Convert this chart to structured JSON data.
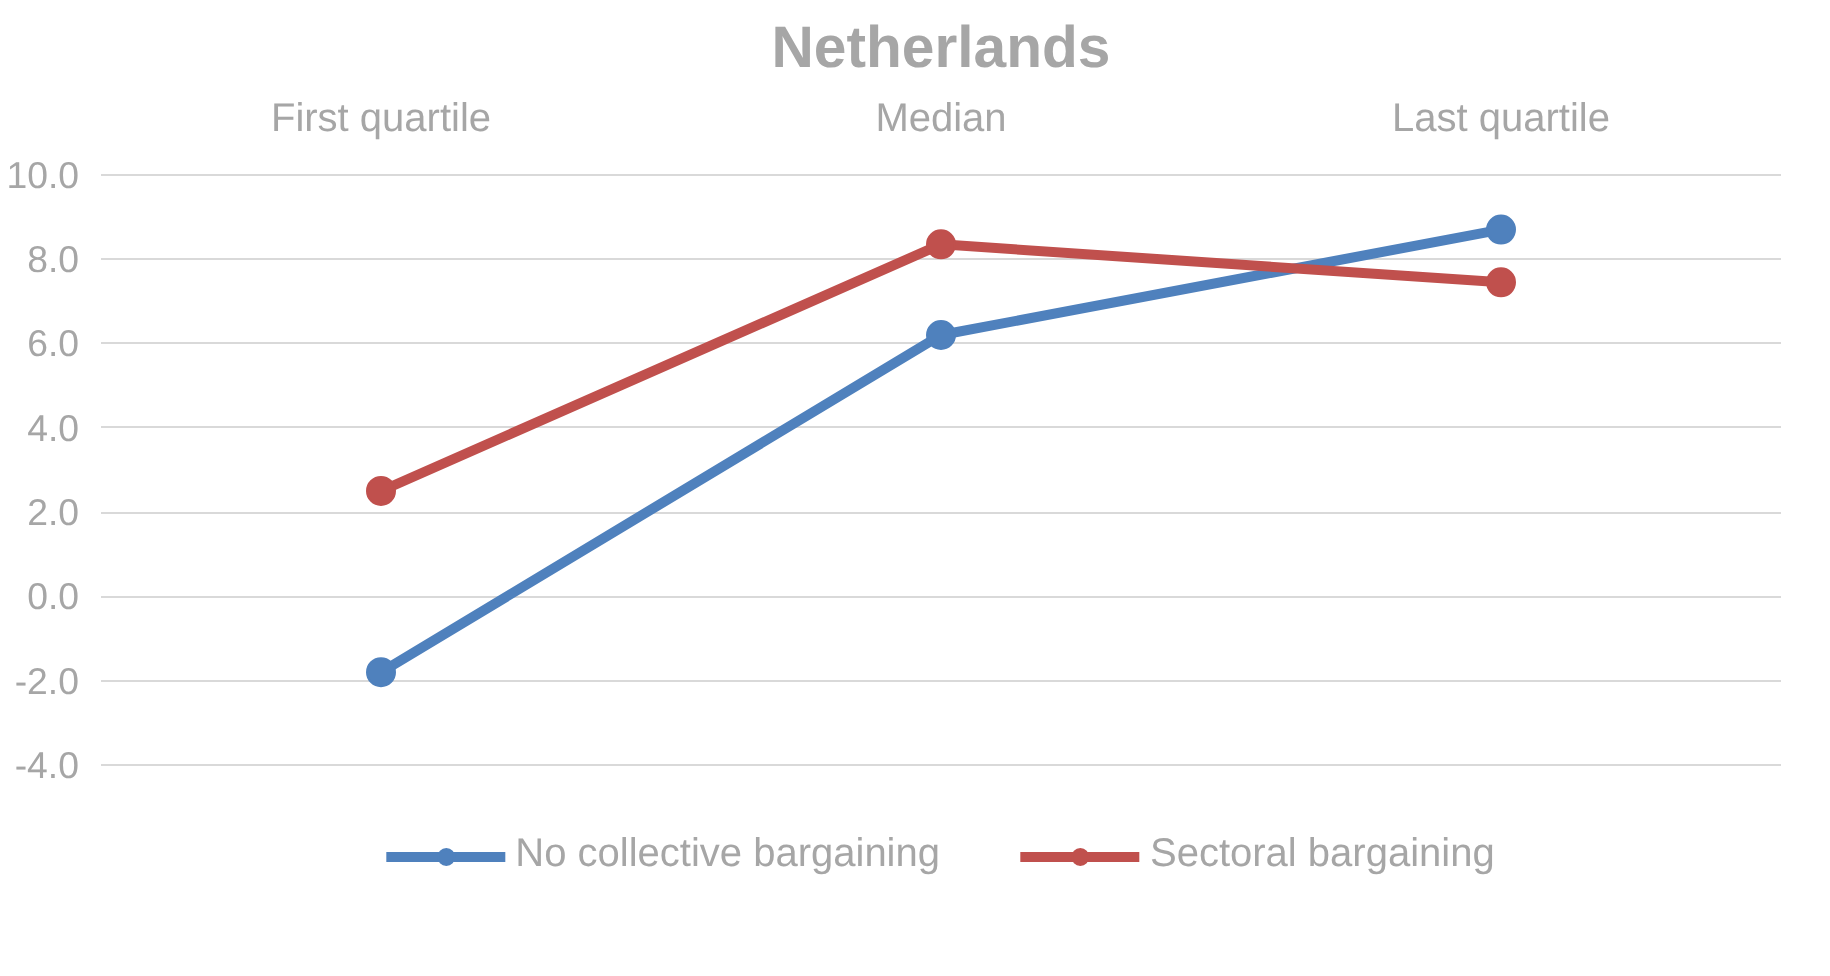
{
  "chart_data": {
    "type": "line",
    "title": "Netherlands",
    "categories": [
      "First quartile",
      "Median",
      "Last quartile"
    ],
    "series": [
      {
        "name": "No collective bargaining",
        "color": "#4f81bd",
        "values": [
          -1.8,
          6.2,
          8.7
        ]
      },
      {
        "name": "Sectoral bargaining",
        "color": "#c0504d",
        "values": [
          2.5,
          8.35,
          7.45
        ]
      }
    ],
    "ylim": [
      -4,
      10
    ],
    "yticks": [
      {
        "value": -4,
        "label": "-4.0"
      },
      {
        "value": -2,
        "label": "-2.0"
      },
      {
        "value": 0,
        "label": "0.0"
      },
      {
        "value": 2,
        "label": "2.0"
      },
      {
        "value": 4,
        "label": "4.0"
      },
      {
        "value": 6,
        "label": "6.0"
      },
      {
        "value": 8,
        "label": "8.0"
      },
      {
        "value": 10,
        "label": "10.0"
      }
    ],
    "grid": "y",
    "legend": "bottom",
    "marker": "circle",
    "line_style": "solid"
  }
}
